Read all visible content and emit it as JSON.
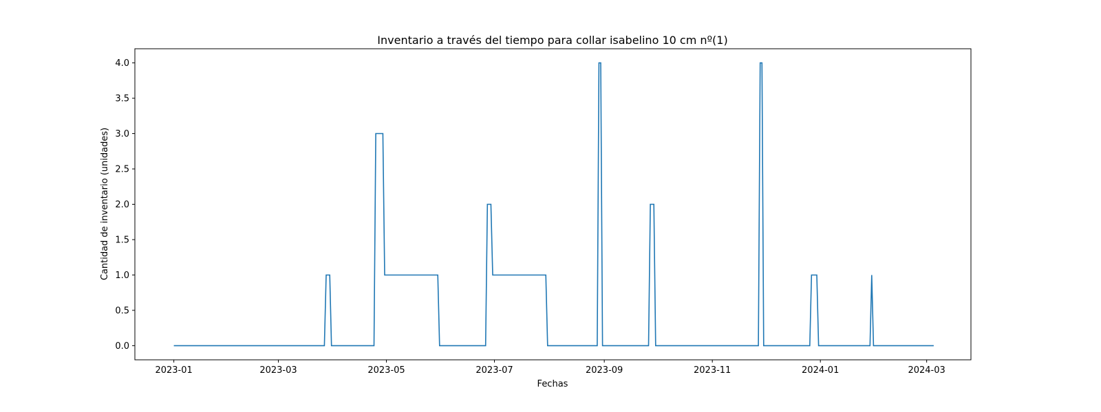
{
  "chart_data": {
    "type": "line",
    "title": "Inventario a través del tiempo para collar isabelino 10 cm nº(1)",
    "xlabel": "Fechas",
    "ylabel": "Cantidad de inventario (unidades)",
    "x_axis_type": "date",
    "xlim": [
      "2022-12-10",
      "2024-03-26"
    ],
    "ylim": [
      -0.2,
      4.2
    ],
    "x_ticks": [
      "2023-01",
      "2023-03",
      "2023-05",
      "2023-07",
      "2023-09",
      "2023-11",
      "2024-01",
      "2024-03"
    ],
    "y_ticks": [
      "0.0",
      "0.5",
      "1.0",
      "1.5",
      "2.0",
      "2.5",
      "3.0",
      "3.5",
      "4.0"
    ],
    "grid": false,
    "legend": "none",
    "series": [
      {
        "color": "#1f77b4",
        "points": [
          [
            "2023-01-01",
            0
          ],
          [
            "2023-03-27",
            0
          ],
          [
            "2023-03-28",
            1
          ],
          [
            "2023-03-30",
            1
          ],
          [
            "2023-03-31",
            0
          ],
          [
            "2023-04-24",
            0
          ],
          [
            "2023-04-25",
            3
          ],
          [
            "2023-04-29",
            3
          ],
          [
            "2023-04-30",
            1
          ],
          [
            "2023-05-30",
            1
          ],
          [
            "2023-05-31",
            0
          ],
          [
            "2023-06-26",
            0
          ],
          [
            "2023-06-27",
            2
          ],
          [
            "2023-06-29",
            2
          ],
          [
            "2023-06-30",
            1
          ],
          [
            "2023-07-30",
            1
          ],
          [
            "2023-07-31",
            0
          ],
          [
            "2023-08-28",
            0
          ],
          [
            "2023-08-29",
            4
          ],
          [
            "2023-08-30",
            4
          ],
          [
            "2023-08-31",
            0
          ],
          [
            "2023-09-26",
            0
          ],
          [
            "2023-09-27",
            2
          ],
          [
            "2023-09-29",
            2
          ],
          [
            "2023-09-30",
            0
          ],
          [
            "2023-11-27",
            0
          ],
          [
            "2023-11-28",
            4
          ],
          [
            "2023-11-29",
            4
          ],
          [
            "2023-11-30",
            0
          ],
          [
            "2023-12-26",
            0
          ],
          [
            "2023-12-27",
            1
          ],
          [
            "2023-12-30",
            1
          ],
          [
            "2023-12-31",
            0
          ],
          [
            "2024-01-29",
            0
          ],
          [
            "2024-01-30",
            1
          ],
          [
            "2024-01-31",
            0
          ],
          [
            "2024-03-05",
            0
          ]
        ]
      }
    ]
  }
}
